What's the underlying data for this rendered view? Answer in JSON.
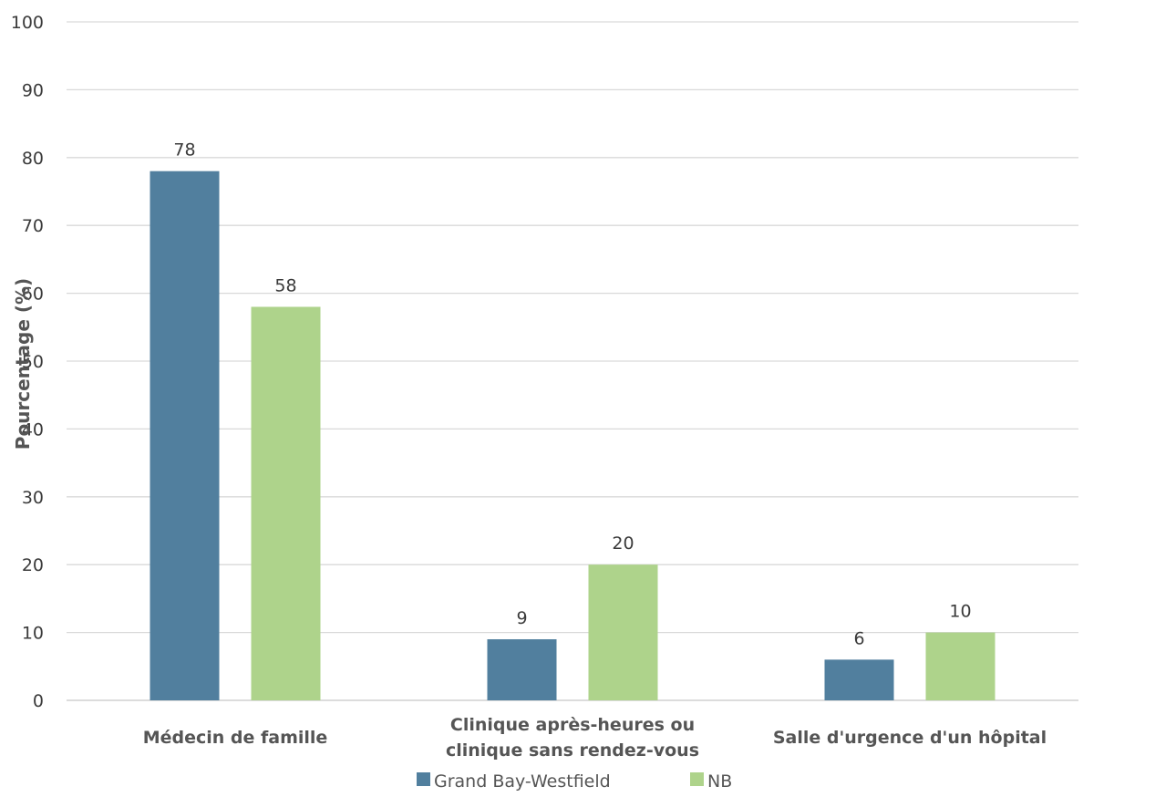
{
  "chart_data": {
    "type": "bar",
    "categories": [
      [
        "Médecin de famille"
      ],
      [
        "Clinique après-heures ou",
        "clinique sans rendez-vous"
      ],
      [
        "Salle d'urgence d'un hôpital"
      ]
    ],
    "series": [
      {
        "name": "Grand Bay-Westfield",
        "color": "#517f9e",
        "values": [
          78,
          9,
          6
        ]
      },
      {
        "name": "NB",
        "color": "#aed38b",
        "values": [
          58,
          20,
          10
        ]
      }
    ],
    "ylabel": "Pourcentage (%)",
    "xlabel": "",
    "title": "",
    "ylim": [
      0,
      100
    ],
    "yticks": [
      0,
      10,
      20,
      30,
      40,
      50,
      60,
      70,
      80,
      90,
      100
    ],
    "grid": true,
    "legend_position": "bottom",
    "gridline_color": "#d9d9d9"
  }
}
